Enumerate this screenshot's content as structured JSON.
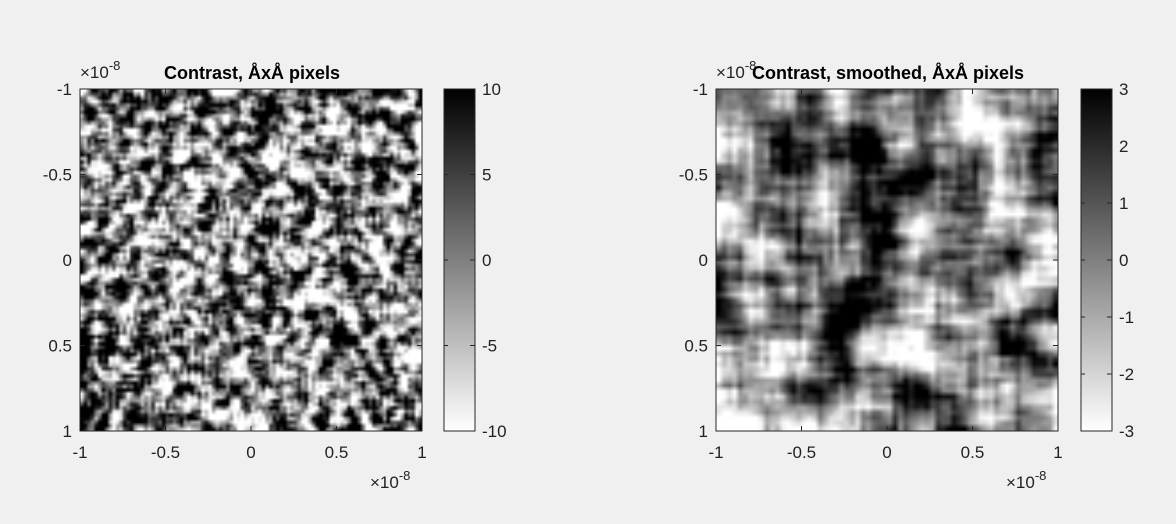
{
  "chart_data": [
    {
      "type": "heatmap",
      "title": "Contrast, ÅxÅ pixels",
      "xlim": [
        -1e-08,
        1e-08
      ],
      "ylim": [
        -1e-08,
        1e-08
      ],
      "y_reversed": true,
      "x_ticks": [
        "-1",
        "-0.5",
        "0",
        "0.5",
        "1"
      ],
      "y_ticks": [
        "-1",
        "-0.5",
        "0",
        "0.5",
        "1"
      ],
      "x_exponent_label": "×10",
      "x_exponent_power": "-8",
      "y_exponent_label": "×10",
      "y_exponent_power": "-8",
      "colormap": "gray-reversed",
      "clim": [
        -10,
        10
      ],
      "colorbar_ticks": [
        "10",
        "5",
        "0",
        "-5",
        "-10"
      ],
      "texture": "fine noise",
      "seed": 7,
      "grid": false
    },
    {
      "type": "heatmap",
      "title": "Contrast, smoothed, ÅxÅ pixels",
      "xlim": [
        -1e-08,
        1e-08
      ],
      "ylim": [
        -1e-08,
        1e-08
      ],
      "y_reversed": true,
      "x_ticks": [
        "-1",
        "-0.5",
        "0",
        "0.5",
        "1"
      ],
      "y_ticks": [
        "-1",
        "-0.5",
        "0",
        "0.5",
        "1"
      ],
      "x_exponent_label": "×10",
      "x_exponent_power": "-8",
      "y_exponent_label": "×10",
      "y_exponent_power": "-8",
      "colormap": "gray-reversed",
      "clim": [
        -3,
        3
      ],
      "colorbar_ticks": [
        "3",
        "2",
        "1",
        "0",
        "-1",
        "-2",
        "-3"
      ],
      "texture": "smoothed blobs",
      "seed": 21,
      "grid": false
    }
  ]
}
